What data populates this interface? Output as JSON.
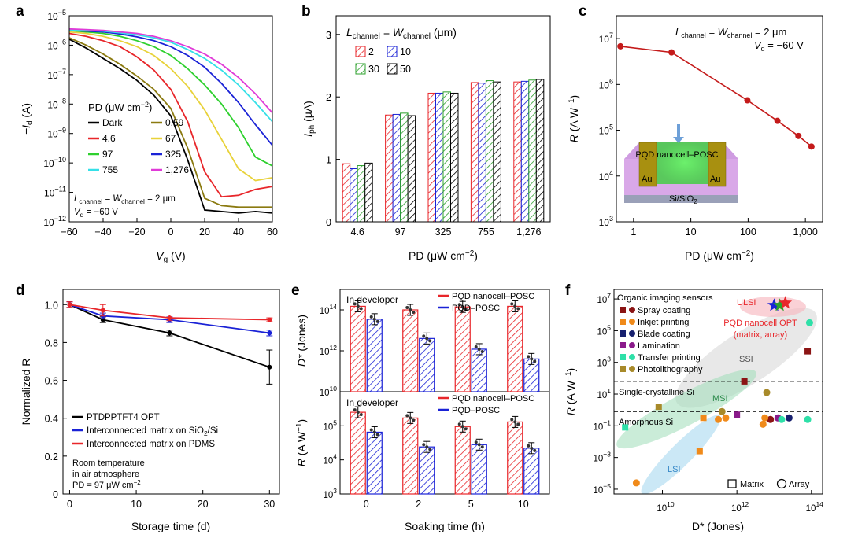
{
  "chart_data": [
    {
      "panel": "a",
      "type": "line",
      "xlabel": "V",
      "xlabel_sub": "g",
      "xlabel_unit": " (V)",
      "ylabel": "−I",
      "ylabel_sub": "d",
      "ylabel_unit": " (A)",
      "xlim": [
        -60,
        60
      ],
      "ylim_log10": [
        -12,
        -5
      ],
      "x_ticks": [
        -60,
        -40,
        -20,
        0,
        20,
        40,
        60
      ],
      "x_tick_labels": [
        "−60",
        "−40",
        "−20",
        "0",
        "20",
        "40",
        "60"
      ],
      "legend_title": "PD (μW cm",
      "legend_title_sup": "−2",
      "annotation": [
        "L",
        "channel",
        " = W",
        "channel",
        " = 2 μm"
      ],
      "annotation2": [
        "V",
        "d",
        " = −60 V"
      ],
      "x": [
        -60,
        -50,
        -40,
        -30,
        -20,
        -10,
        0,
        10,
        20,
        30,
        40,
        50,
        60
      ],
      "series": [
        {
          "name": "Dark",
          "color": "#000000",
          "log10_values": [
            -5.8,
            -6.1,
            -6.45,
            -6.8,
            -7.2,
            -7.7,
            -8.4,
            -9.9,
            -11.6,
            -11.65,
            -11.7,
            -11.65,
            -11.7
          ]
        },
        {
          "name": "0.59",
          "color": "#8b7a10",
          "log10_values": [
            -5.75,
            -6.0,
            -6.3,
            -6.65,
            -7.05,
            -7.5,
            -8.15,
            -9.5,
            -11.2,
            -11.45,
            -11.5,
            -11.5,
            -11.5
          ]
        },
        {
          "name": "4.6",
          "color": "#e8262a",
          "log10_values": [
            -5.6,
            -5.7,
            -5.85,
            -6.05,
            -6.4,
            -6.85,
            -7.5,
            -8.6,
            -10.3,
            -11.15,
            -11.1,
            -10.9,
            -10.8
          ]
        },
        {
          "name": "67",
          "color": "#e8d23a",
          "log10_values": [
            -5.55,
            -5.6,
            -5.7,
            -5.85,
            -6.05,
            -6.35,
            -6.8,
            -7.4,
            -8.2,
            -9.2,
            -10.2,
            -10.6,
            -10.5
          ]
        },
        {
          "name": "97",
          "color": "#2ed02e",
          "log10_values": [
            -5.5,
            -5.55,
            -5.6,
            -5.7,
            -5.85,
            -6.05,
            -6.35,
            -6.8,
            -7.35,
            -8.0,
            -8.8,
            -9.8,
            -10.1
          ]
        },
        {
          "name": "325",
          "color": "#1a22d6",
          "log10_values": [
            -5.5,
            -5.52,
            -5.55,
            -5.62,
            -5.72,
            -5.85,
            -6.05,
            -6.35,
            -6.75,
            -7.3,
            -7.95,
            -8.7,
            -9.4
          ]
        },
        {
          "name": "755",
          "color": "#35e0e8",
          "log10_values": [
            -5.48,
            -5.5,
            -5.52,
            -5.58,
            -5.65,
            -5.75,
            -5.9,
            -6.15,
            -6.45,
            -6.85,
            -7.35,
            -7.95,
            -8.6
          ]
        },
        {
          "name": "1,276",
          "color": "#e03ad8",
          "log10_values": [
            -5.45,
            -5.47,
            -5.5,
            -5.55,
            -5.6,
            -5.7,
            -5.85,
            -6.05,
            -6.3,
            -6.65,
            -7.1,
            -7.65,
            -8.3
          ]
        }
      ]
    },
    {
      "panel": "b",
      "type": "bar",
      "xlabel": "PD (μW cm",
      "xlabel_sup": "−2",
      "ylabel": "I",
      "ylabel_sub": "ph",
      "ylabel_unit": " (μA)",
      "ylim": [
        0,
        3.3
      ],
      "y_ticks": [
        0,
        1,
        2,
        3
      ],
      "legend_title": [
        "L",
        "channel",
        " = W",
        "channel",
        " (μm)"
      ],
      "categories": [
        "4.6",
        "97",
        "325",
        "755",
        "1,276"
      ],
      "series": [
        {
          "name": "2",
          "color": "#e8262a",
          "values": [
            0.93,
            1.71,
            2.06,
            2.23,
            2.24
          ]
        },
        {
          "name": "10",
          "color": "#1a22d6",
          "values": [
            0.85,
            1.72,
            2.06,
            2.22,
            2.25
          ]
        },
        {
          "name": "30",
          "color": "#2ca02c",
          "values": [
            0.9,
            1.74,
            2.08,
            2.26,
            2.27
          ]
        },
        {
          "name": "50",
          "color": "#000000",
          "values": [
            0.94,
            1.7,
            2.06,
            2.24,
            2.28
          ]
        }
      ]
    },
    {
      "panel": "c",
      "type": "line",
      "xlabel": "PD (μW cm",
      "xlabel_sup": "−2",
      "ylabel": "R",
      "ylabel_unit": " (A W",
      "ylabel_sup": "−1",
      "xlim_log10": [
        -0.3,
        3.3
      ],
      "ylim_log10": [
        3,
        7.5
      ],
      "x_ticks_log10": [
        0,
        1,
        2,
        3
      ],
      "x_tick_labels": [
        "1",
        "10",
        "100",
        "1,000"
      ],
      "annotation": [
        "L",
        "channel",
        " = W",
        "channel",
        " = 2 μm"
      ],
      "annotation2": [
        "V",
        "d",
        " = −60 V"
      ],
      "color": "#c41a1a",
      "x": [
        0.59,
        4.6,
        97,
        325,
        755,
        1276
      ],
      "values": [
        6800000,
        5000000,
        450000,
        160000,
        75000,
        44000
      ],
      "inset": {
        "device_label": "PQD nanocell–POSC",
        "electrode_label": "Au",
        "substrate_label": "Si/SiO",
        "substrate_sub": "2"
      }
    },
    {
      "panel": "d",
      "type": "line",
      "xlabel": "Storage time (d)",
      "ylabel": "Normalized R",
      "xlim": [
        -1,
        31.5
      ],
      "ylim": [
        0,
        1.08
      ],
      "x_ticks": [
        0,
        10,
        20,
        30
      ],
      "y_ticks": [
        0,
        0.2,
        0.4,
        0.6,
        0.8,
        1.0
      ],
      "y_tick_labels": [
        "0",
        "0.2",
        "0.4",
        "0.6",
        "0.8",
        "1.0"
      ],
      "notes": [
        "Room temperature",
        "in air atmosphere",
        "PD = 97 μW cm"
      ],
      "notes_sup": "−2",
      "x": [
        0,
        5,
        15,
        30
      ],
      "series": [
        {
          "name": "PTDPPTFT4 OPT",
          "color": "#000000",
          "values": [
            1.0,
            0.92,
            0.85,
            0.67
          ],
          "errors": [
            0.015,
            0.015,
            0.015,
            0.09
          ]
        },
        {
          "name": "Interconnected matrix on SiO",
          "name_sub": "2",
          "name_tail": "/Si",
          "color": "#1a22d6",
          "values": [
            1.0,
            0.94,
            0.92,
            0.85
          ],
          "errors": [
            0.015,
            0.015,
            0.015,
            0.015
          ]
        },
        {
          "name": "Interconnected matrix on PDMS",
          "color": "#e8262a",
          "values": [
            1.0,
            0.97,
            0.93,
            0.92
          ],
          "errors": [
            0.015,
            0.03,
            0.015,
            0.01
          ]
        }
      ]
    },
    {
      "panel": "e",
      "type": "bar",
      "xlabel": "Soaking time (h)",
      "categories": [
        "0",
        "2",
        "5",
        "10"
      ],
      "subplots": [
        {
          "label": "In developer",
          "ylabel": "D*",
          "ylabel_unit": " (Jones)",
          "ylim_log10": [
            10,
            15
          ],
          "y_ticks": [
            "10",
            "12",
            "14"
          ],
          "series": [
            {
              "name": "PQD nanocell–POSC",
              "color": "#e8262a",
              "values": [
                150000000000000,
                100000000000000,
                140000000000000,
                150000000000000
              ]
            },
            {
              "name": "PQD–POSC",
              "color": "#1a22d6",
              "values": [
                35000000000000,
                4000000000000,
                1200000000000,
                400000000000
              ]
            }
          ]
        },
        {
          "label": "In developer",
          "ylabel": "R",
          "ylabel_unit": " (A W",
          "ylabel_sup": "−1",
          "ylim_log10": [
            3,
            6
          ],
          "y_ticks": [
            "3",
            "4",
            "5"
          ],
          "series": [
            {
              "name": "PQD nanocell–POSC",
              "color": "#e8262a",
              "values": [
                250000,
                170000,
                95000,
                130000
              ]
            },
            {
              "name": "PQD–POSC",
              "color": "#1a22d6",
              "values": [
                65000,
                24000,
                28000,
                22000
              ]
            }
          ]
        }
      ]
    },
    {
      "panel": "f",
      "type": "scatter",
      "xlabel": "D* (Jones)",
      "ylabel": "R",
      "ylabel_unit": " (A W",
      "ylabel_sup": "−1",
      "xlim_log10": [
        8.7,
        14.3
      ],
      "ylim_log10": [
        -5.3,
        7.6
      ],
      "x_ticks": [
        "10",
        "12",
        "14"
      ],
      "y_ticks": [
        "−5",
        "−3",
        "−1",
        "1",
        "3",
        "5",
        "7"
      ],
      "legend_title": "Organic imaging sensors",
      "legend": [
        {
          "name": "Spray coating",
          "color": "#8b1414"
        },
        {
          "name": "Inkjet printing",
          "color": "#f08a1a"
        },
        {
          "name": "Blade coating",
          "color": "#17206e"
        },
        {
          "name": "Lamination",
          "color": "#8a1a8a"
        },
        {
          "name": "Transfer printing",
          "color": "#2ee0a8"
        },
        {
          "name": "Photolithography",
          "color": "#a88a2a"
        }
      ],
      "region_labels": {
        "ulsi": "ULSI",
        "ssi": "SSI",
        "msi": "MSI",
        "lsi": "LSI"
      },
      "reference_lines": [
        {
          "label": "Single-crystalline Si",
          "log10_y": 1.8
        },
        {
          "label": "Amorphous Si",
          "log10_y": -0.1
        }
      ],
      "highlight_label": "PQD nanocell OPT",
      "highlight_label2": "(matrix, array)",
      "marker_legend": [
        {
          "shape": "square",
          "label": "Matrix"
        },
        {
          "shape": "circle",
          "label": "Array"
        }
      ],
      "points": [
        {
          "method": "Spray coating",
          "shape": "square",
          "log10_x": 12.2,
          "log10_y": 1.8,
          "color": "#8b1414"
        },
        {
          "method": "Spray coating",
          "shape": "square",
          "log10_x": 13.9,
          "log10_y": 3.7,
          "color": "#8b1414"
        },
        {
          "method": "Spray coating",
          "shape": "circle",
          "log10_x": 12.9,
          "log10_y": -0.6,
          "color": "#8b1414"
        },
        {
          "method": "Inkjet printing",
          "shape": "square",
          "log10_x": 11.0,
          "log10_y": -2.6,
          "color": "#f08a1a"
        },
        {
          "method": "Inkjet printing",
          "shape": "square",
          "log10_x": 11.1,
          "log10_y": -0.5,
          "color": "#f08a1a"
        },
        {
          "method": "Inkjet printing",
          "shape": "circle",
          "log10_x": 9.3,
          "log10_y": -4.6,
          "color": "#f08a1a"
        },
        {
          "method": "Inkjet printing",
          "shape": "circle",
          "log10_x": 11.5,
          "log10_y": -0.6,
          "color": "#f08a1a"
        },
        {
          "method": "Inkjet printing",
          "shape": "circle",
          "log10_x": 11.7,
          "log10_y": -0.5,
          "color": "#f08a1a"
        },
        {
          "method": "Inkjet printing",
          "shape": "circle",
          "log10_x": 12.7,
          "log10_y": -0.9,
          "color": "#f08a1a"
        },
        {
          "method": "Inkjet printing",
          "shape": "circle",
          "log10_x": 12.75,
          "log10_y": -0.5,
          "color": "#f08a1a"
        },
        {
          "method": "Blade coating",
          "shape": "circle",
          "log10_x": 13.4,
          "log10_y": -0.5,
          "color": "#17206e"
        },
        {
          "method": "Lamination",
          "shape": "circle",
          "log10_x": 13.1,
          "log10_y": -0.5,
          "color": "#8a1a8a"
        },
        {
          "method": "Lamination",
          "shape": "square",
          "log10_x": 12.0,
          "log10_y": -0.3,
          "color": "#8a1a8a"
        },
        {
          "method": "Transfer printing",
          "shape": "square",
          "log10_x": 9.0,
          "log10_y": -1.1,
          "color": "#2ee0a8"
        },
        {
          "method": "Transfer printing",
          "shape": "circle",
          "log10_x": 13.95,
          "log10_y": 5.5,
          "color": "#2ee0a8"
        },
        {
          "method": "Transfer printing",
          "shape": "circle",
          "log10_x": 13.9,
          "log10_y": -0.6,
          "color": "#2ee0a8"
        },
        {
          "method": "Transfer printing",
          "shape": "circle",
          "log10_x": 13.2,
          "log10_y": -0.6,
          "color": "#2ee0a8"
        },
        {
          "method": "Photolithography",
          "shape": "square",
          "log10_x": 9.9,
          "log10_y": 0.2,
          "color": "#a88a2a"
        },
        {
          "method": "Photolithography",
          "shape": "circle",
          "log10_x": 12.8,
          "log10_y": 1.1,
          "color": "#a88a2a"
        },
        {
          "method": "Photolithography",
          "shape": "circle",
          "log10_x": 11.6,
          "log10_y": -0.1,
          "color": "#a88a2a"
        },
        {
          "method": "PQD nanocell OPT",
          "shape": "star",
          "log10_x": 13.0,
          "log10_y": 6.6,
          "color": "#1a22d6"
        },
        {
          "method": "PQD nanocell OPT",
          "shape": "star",
          "log10_x": 13.15,
          "log10_y": 6.6,
          "color": "#2ca02c"
        },
        {
          "method": "PQD nanocell OPT",
          "shape": "star",
          "log10_x": 13.3,
          "log10_y": 6.75,
          "color": "#e8262a"
        }
      ]
    }
  ]
}
